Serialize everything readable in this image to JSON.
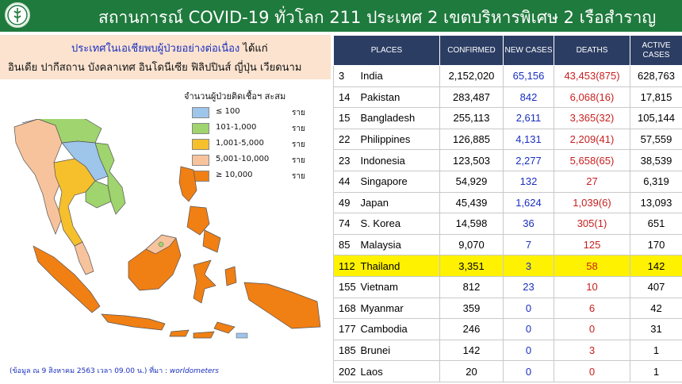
{
  "header": {
    "title": "สถานการณ์ COVID-19 ทั่วโลก 211 ประเทศ 2 เขตบริหารพิเศษ 2 เรือสำราญ"
  },
  "note": {
    "line1": "ประเทศในเอเชียพบผู้ป่วยอย่างต่อเนื่อง",
    "line1_suffix": "ได้แก่",
    "line2": "อินเดีย ปากีสถาน บังคลาเทศ อินโดนีเซีย ฟิลิปปินส์ ญี่ปุ่น เวียดนาม"
  },
  "legend": {
    "title": "จำนวนผู้ป่วยติดเชื้อฯ สะสม",
    "items": [
      {
        "range": "≤ 100",
        "unit": "ราย",
        "color": "#9ec5ea"
      },
      {
        "range": "101-1,000",
        "unit": "ราย",
        "color": "#9fd46e"
      },
      {
        "range": "1,001-5,000",
        "unit": "ราย",
        "color": "#f6c02c"
      },
      {
        "range": "5,001-10,000",
        "unit": "ราย",
        "color": "#f7c39c"
      },
      {
        "range": "≥ 10,000",
        "unit": "ราย",
        "color": "#f07f14"
      }
    ]
  },
  "footnote": {
    "text": "(ข้อมูล ณ 9 สิงหาคม 2563 เวลา 09.00 น.) ที่มา :",
    "source": "worldometers"
  },
  "table": {
    "headers": {
      "places": "PLACES",
      "confirmed": "CONFIRMED",
      "new_cases": "NEW  CASES",
      "deaths": "DEATHS",
      "active_line1": "ACTIVE",
      "active_line2": "CASES"
    },
    "rows": [
      {
        "rank": "3",
        "place": "India",
        "confirmed": "2,152,020",
        "new": "65,156",
        "deaths": "43,453(875)",
        "active": "628,763"
      },
      {
        "rank": "14",
        "place": "Pakistan",
        "confirmed": "283,487",
        "new": "842",
        "deaths": "6,068(16)",
        "active": "17,815"
      },
      {
        "rank": "15",
        "place": "Bangladesh",
        "confirmed": "255,113",
        "new": "2,611",
        "deaths": "3,365(32)",
        "active": "105,144"
      },
      {
        "rank": "22",
        "place": "Philippines",
        "confirmed": "126,885",
        "new": "4,131",
        "deaths": "2,209(41)",
        "active": "57,559"
      },
      {
        "rank": "23",
        "place": "Indonesia",
        "confirmed": "123,503",
        "new": "2,277",
        "deaths": "5,658(65)",
        "active": "38,539"
      },
      {
        "rank": "44",
        "place": "Singapore",
        "confirmed": "54,929",
        "new": "132",
        "deaths": "27",
        "active": "6,319"
      },
      {
        "rank": "49",
        "place": "Japan",
        "confirmed": "45,439",
        "new": "1,624",
        "deaths": "1,039(6)",
        "active": "13,093"
      },
      {
        "rank": "74",
        "place": "S. Korea",
        "confirmed": "14,598",
        "new": "36",
        "deaths": "305(1)",
        "active": "651"
      },
      {
        "rank": "85",
        "place": "Malaysia",
        "confirmed": "9,070",
        "new": "7",
        "deaths": "125",
        "active": "170"
      },
      {
        "rank": "112",
        "place": "Thailand",
        "confirmed": "3,351",
        "new": "3",
        "deaths": "58",
        "active": "142",
        "highlight": true
      },
      {
        "rank": "155",
        "place": "Vietnam",
        "confirmed": "812",
        "new": "23",
        "deaths": "10",
        "active": "407"
      },
      {
        "rank": "168",
        "place": "Myanmar",
        "confirmed": "359",
        "new": "0",
        "deaths": "6",
        "active": "42"
      },
      {
        "rank": "177",
        "place": "Cambodia",
        "confirmed": "246",
        "new": "0",
        "deaths": "0",
        "active": "31"
      },
      {
        "rank": "185",
        "place": "Brunei",
        "confirmed": "142",
        "new": "0",
        "deaths": "3",
        "active": "1"
      },
      {
        "rank": "202",
        "place": "Laos",
        "confirmed": "20",
        "new": "0",
        "deaths": "0",
        "active": "1"
      }
    ]
  },
  "colors": {
    "header_bg": "#1f7a3d",
    "table_header_bg": "#2c3d63",
    "note_bg": "#fbe3cf",
    "highlight": "#fff200",
    "new_cases_text": "#1a2fbf",
    "deaths_text": "#c81e1e"
  }
}
